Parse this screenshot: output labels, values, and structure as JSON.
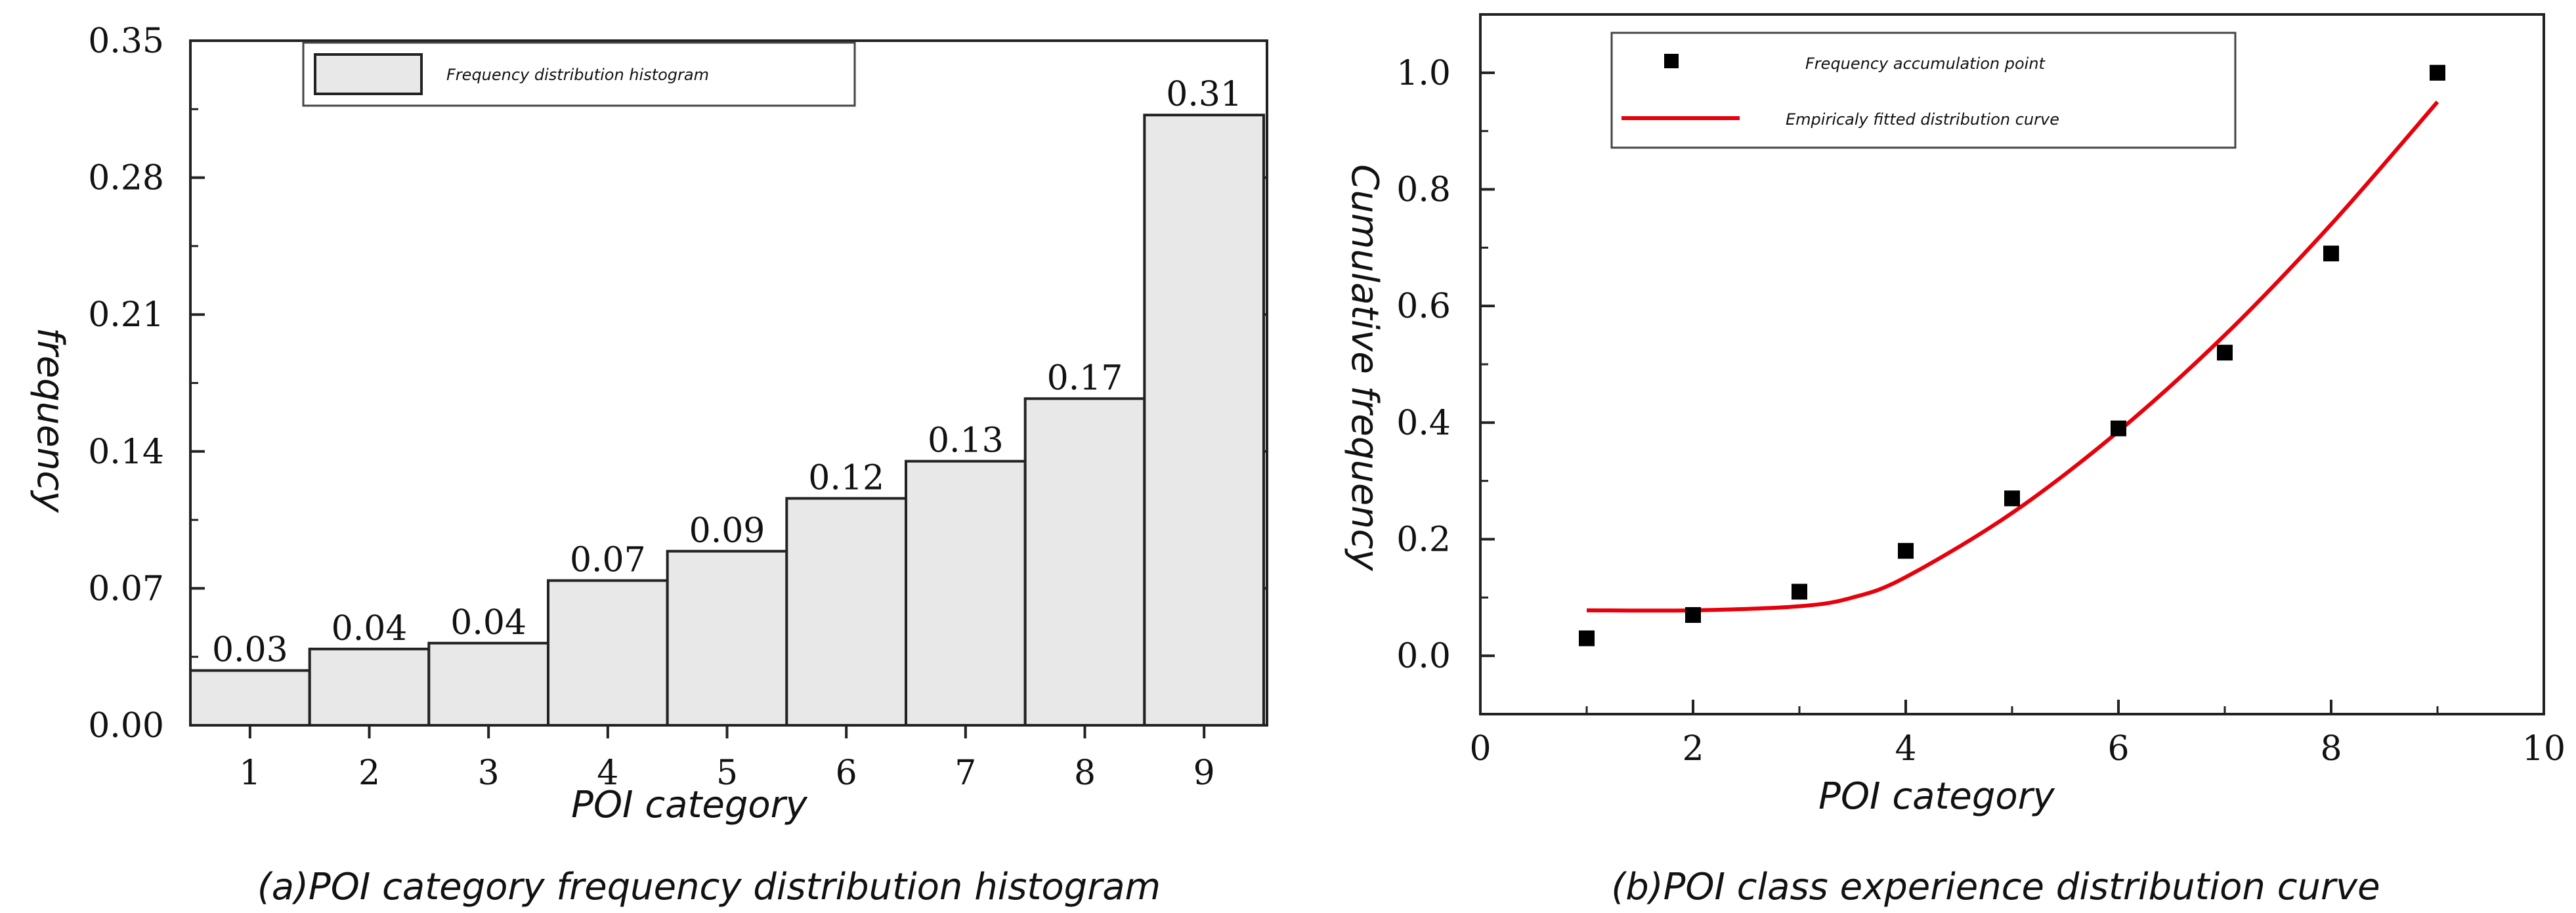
{
  "chart_data": [
    {
      "type": "bar",
      "categories": [
        "1",
        "2",
        "3",
        "4",
        "5",
        "6",
        "7",
        "8",
        "9"
      ],
      "values": [
        0.028,
        0.039,
        0.042,
        0.074,
        0.089,
        0.116,
        0.135,
        0.167,
        0.312
      ],
      "value_labels": [
        "0.03",
        "0.04",
        "0.04",
        "0.07",
        "0.09",
        "0.12",
        "0.13",
        "0.17",
        "0.31"
      ],
      "xlabel": "POI category",
      "ylabel": "frequency",
      "ylim": [
        0,
        0.35
      ],
      "yticks": [
        "0.00",
        "0.07",
        "0.14",
        "0.21",
        "0.28",
        "0.35"
      ],
      "legend": [
        "Frequency distribution histogram"
      ],
      "legend_position": "top-center",
      "bar_fill": "#e8e8e8",
      "caption": "(a)POI category frequency distribution histogram"
    },
    {
      "type": "scatter",
      "series": [
        {
          "name": "Frequency accumulation point",
          "x": [
            1,
            2,
            3,
            4,
            5,
            6,
            7,
            8,
            9
          ],
          "y": [
            0.03,
            0.07,
            0.11,
            0.18,
            0.27,
            0.39,
            0.52,
            0.69,
            1.0
          ],
          "marker": "square",
          "color": "#000000"
        },
        {
          "name": "Empiricaly fitted distribution curve",
          "x": [
            1,
            2,
            3,
            3.5,
            4,
            5,
            6,
            7,
            8,
            9
          ],
          "y": [
            0.078,
            0.078,
            0.085,
            0.1,
            0.135,
            0.245,
            0.385,
            0.55,
            0.74,
            0.95
          ],
          "type": "line",
          "color": "#e8000b"
        }
      ],
      "xlabel": "POI category",
      "ylabel": "Cumulative frequency",
      "xlim": [
        0,
        10
      ],
      "ylim": [
        -0.1,
        1.1
      ],
      "xticks": [
        "0",
        "2",
        "4",
        "6",
        "8",
        "10"
      ],
      "yticks": [
        "0.0",
        "0.2",
        "0.4",
        "0.6",
        "0.8",
        "1.0"
      ],
      "legend_position": "top-center",
      "caption": "(b)POI class experience distribution curve"
    }
  ]
}
